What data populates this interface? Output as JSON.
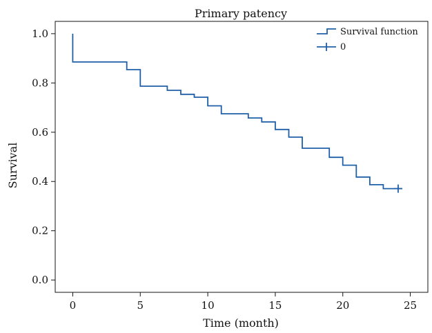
{
  "chart_data": {
    "type": "line",
    "subtype": "step (Kaplan-Meier survival curve)",
    "title": "Primary patency",
    "xlabel": "Time (month)",
    "ylabel": "Survival",
    "xlim": [
      -1.3,
      26.3
    ],
    "ylim": [
      -0.05,
      1.05
    ],
    "xticks": [
      0,
      5,
      10,
      15,
      20,
      25
    ],
    "xtick_labels": [
      "0",
      "5",
      "10",
      "15",
      "20",
      "25"
    ],
    "yticks": [
      0.0,
      0.2,
      0.4,
      0.6,
      0.8,
      1.0
    ],
    "ytick_labels": [
      "0.0",
      "0.2",
      "0.4",
      "0.6",
      "0.8",
      "1.0"
    ],
    "grid": false,
    "legend_position": "top-right",
    "series": [
      {
        "name": "Survival function",
        "color": "#1f5fa8",
        "step_points": [
          [
            0,
            1.0
          ],
          [
            0,
            0.885
          ],
          [
            4,
            0.885
          ],
          [
            4,
            0.854
          ],
          [
            5,
            0.854
          ],
          [
            5,
            0.787
          ],
          [
            7,
            0.787
          ],
          [
            7,
            0.77
          ],
          [
            8,
            0.77
          ],
          [
            8,
            0.754
          ],
          [
            9,
            0.754
          ],
          [
            9,
            0.742
          ],
          [
            10,
            0.742
          ],
          [
            10,
            0.707
          ],
          [
            11,
            0.707
          ],
          [
            11,
            0.675
          ],
          [
            13,
            0.675
          ],
          [
            13,
            0.658
          ],
          [
            14,
            0.658
          ],
          [
            14,
            0.642
          ],
          [
            15,
            0.642
          ],
          [
            15,
            0.611
          ],
          [
            16,
            0.611
          ],
          [
            16,
            0.58
          ],
          [
            17,
            0.58
          ],
          [
            17,
            0.535
          ],
          [
            19,
            0.535
          ],
          [
            19,
            0.498
          ],
          [
            20,
            0.498
          ],
          [
            20,
            0.466
          ],
          [
            21,
            0.466
          ],
          [
            21,
            0.418
          ],
          [
            22,
            0.418
          ],
          [
            22,
            0.387
          ],
          [
            23,
            0.387
          ],
          [
            23,
            0.371
          ],
          [
            24.4,
            0.371
          ]
        ]
      },
      {
        "name": "0",
        "color": "#1f5fa8",
        "marker": "plus",
        "points": [
          [
            24.1,
            0.371
          ]
        ]
      }
    ]
  }
}
